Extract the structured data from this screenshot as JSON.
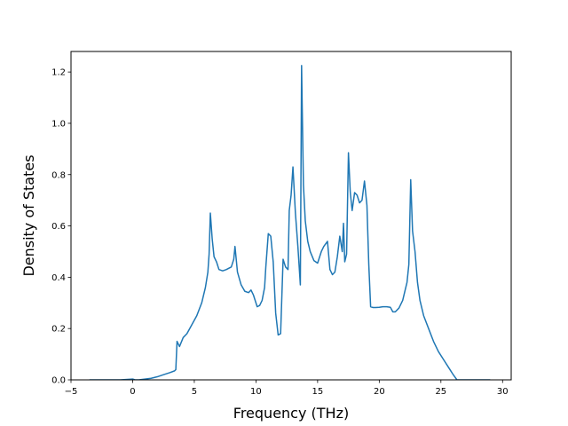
{
  "chart_data": {
    "type": "line",
    "title": "",
    "xlabel": "Frequency (THz)",
    "ylabel": "Density of States",
    "xlim": [
      -5.0,
      30.7
    ],
    "ylim": [
      0.0,
      1.28
    ],
    "xticks": [
      -5,
      0,
      5,
      10,
      15,
      20,
      25,
      30
    ],
    "xtick_labels": [
      "−5",
      "0",
      "5",
      "10",
      "15",
      "20",
      "25",
      "30"
    ],
    "yticks": [
      0.0,
      0.2,
      0.4,
      0.6,
      0.8,
      1.0,
      1.2
    ],
    "ytick_labels": [
      "0.0",
      "0.2",
      "0.4",
      "0.6",
      "0.8",
      "1.0",
      "1.2"
    ],
    "grid": false,
    "legend": "none",
    "series": [
      {
        "color": "#1f77b4",
        "x": [
          -3.5,
          -1.0,
          0.0,
          0.2,
          0.5,
          1.0,
          1.5,
          2.0,
          2.5,
          3.0,
          3.4,
          3.5,
          3.6,
          3.8,
          4.1,
          4.4,
          4.8,
          5.2,
          5.6,
          5.9,
          6.1,
          6.2,
          6.3,
          6.45,
          6.6,
          6.8,
          7.0,
          7.3,
          7.6,
          8.0,
          8.2,
          8.3,
          8.5,
          8.8,
          9.1,
          9.4,
          9.6,
          9.8,
          10.1,
          10.3,
          10.5,
          10.7,
          10.8,
          11.0,
          11.2,
          11.4,
          11.6,
          11.8,
          12.0,
          12.2,
          12.4,
          12.6,
          12.7,
          12.85,
          13.0,
          13.2,
          13.4,
          13.6,
          13.7,
          13.85,
          14.0,
          14.2,
          14.4,
          14.7,
          15.0,
          15.3,
          15.5,
          15.8,
          16.0,
          16.2,
          16.4,
          16.6,
          16.8,
          17.0,
          17.1,
          17.2,
          17.35,
          17.5,
          17.65,
          17.8,
          18.0,
          18.2,
          18.4,
          18.6,
          18.8,
          19.0,
          19.15,
          19.3,
          19.5,
          19.7,
          20.0,
          20.3,
          20.6,
          20.9,
          21.1,
          21.3,
          21.6,
          21.9,
          22.1,
          22.25,
          22.4,
          22.55,
          22.7,
          22.9,
          23.1,
          23.3,
          23.6,
          24.0,
          24.4,
          24.8,
          25.2,
          25.6,
          26.0,
          26.3,
          26.5,
          27.0,
          28.0,
          29.0
        ],
        "y": [
          0.0,
          0.0,
          0.003,
          0.0,
          0.0,
          0.003,
          0.006,
          0.012,
          0.02,
          0.028,
          0.035,
          0.04,
          0.15,
          0.13,
          0.165,
          0.18,
          0.215,
          0.25,
          0.3,
          0.36,
          0.42,
          0.49,
          0.65,
          0.55,
          0.48,
          0.46,
          0.43,
          0.425,
          0.43,
          0.44,
          0.47,
          0.52,
          0.42,
          0.37,
          0.345,
          0.34,
          0.35,
          0.33,
          0.285,
          0.29,
          0.31,
          0.36,
          0.44,
          0.57,
          0.56,
          0.46,
          0.26,
          0.175,
          0.18,
          0.47,
          0.44,
          0.43,
          0.66,
          0.72,
          0.83,
          0.65,
          0.52,
          0.37,
          1.225,
          0.76,
          0.62,
          0.54,
          0.5,
          0.465,
          0.455,
          0.5,
          0.52,
          0.54,
          0.43,
          0.41,
          0.42,
          0.48,
          0.56,
          0.5,
          0.61,
          0.46,
          0.49,
          0.885,
          0.73,
          0.66,
          0.73,
          0.72,
          0.69,
          0.7,
          0.775,
          0.68,
          0.45,
          0.285,
          0.282,
          0.282,
          0.283,
          0.285,
          0.285,
          0.283,
          0.265,
          0.265,
          0.28,
          0.31,
          0.35,
          0.38,
          0.45,
          0.78,
          0.58,
          0.5,
          0.38,
          0.31,
          0.25,
          0.2,
          0.15,
          0.11,
          0.08,
          0.05,
          0.02,
          0.0,
          0.0,
          0.0,
          0.0,
          0.0
        ]
      }
    ]
  }
}
